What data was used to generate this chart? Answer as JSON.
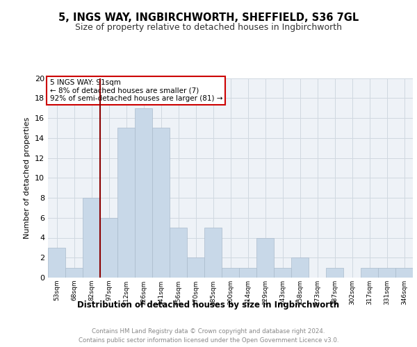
{
  "title": "5, INGS WAY, INGBIRCHWORTH, SHEFFIELD, S36 7GL",
  "subtitle": "Size of property relative to detached houses in Ingbirchworth",
  "xlabel": "Distribution of detached houses by size in Ingbirchworth",
  "ylabel": "Number of detached properties",
  "categories": [
    "53sqm",
    "68sqm",
    "82sqm",
    "97sqm",
    "112sqm",
    "126sqm",
    "141sqm",
    "156sqm",
    "170sqm",
    "185sqm",
    "200sqm",
    "214sqm",
    "229sqm",
    "243sqm",
    "258sqm",
    "273sqm",
    "287sqm",
    "302sqm",
    "317sqm",
    "331sqm",
    "346sqm"
  ],
  "values": [
    3,
    1,
    8,
    6,
    15,
    17,
    15,
    5,
    2,
    5,
    1,
    1,
    4,
    1,
    2,
    0,
    1,
    0,
    1,
    1,
    1
  ],
  "bar_color": "#c8d8e8",
  "bar_edge_color": "#aabbcc",
  "vline_color": "#8b0000",
  "annotation_text": "5 INGS WAY: 91sqm\n← 8% of detached houses are smaller (7)\n92% of semi-detached houses are larger (81) →",
  "annotation_box_color": "#ffffff",
  "annotation_box_edge_color": "#cc0000",
  "grid_color": "#d0d8e0",
  "background_color": "#eef2f7",
  "footer_line1": "Contains HM Land Registry data © Crown copyright and database right 2024.",
  "footer_line2": "Contains public sector information licensed under the Open Government Licence v3.0.",
  "ylim": [
    0,
    20
  ],
  "yticks": [
    0,
    2,
    4,
    6,
    8,
    10,
    12,
    14,
    16,
    18,
    20
  ]
}
